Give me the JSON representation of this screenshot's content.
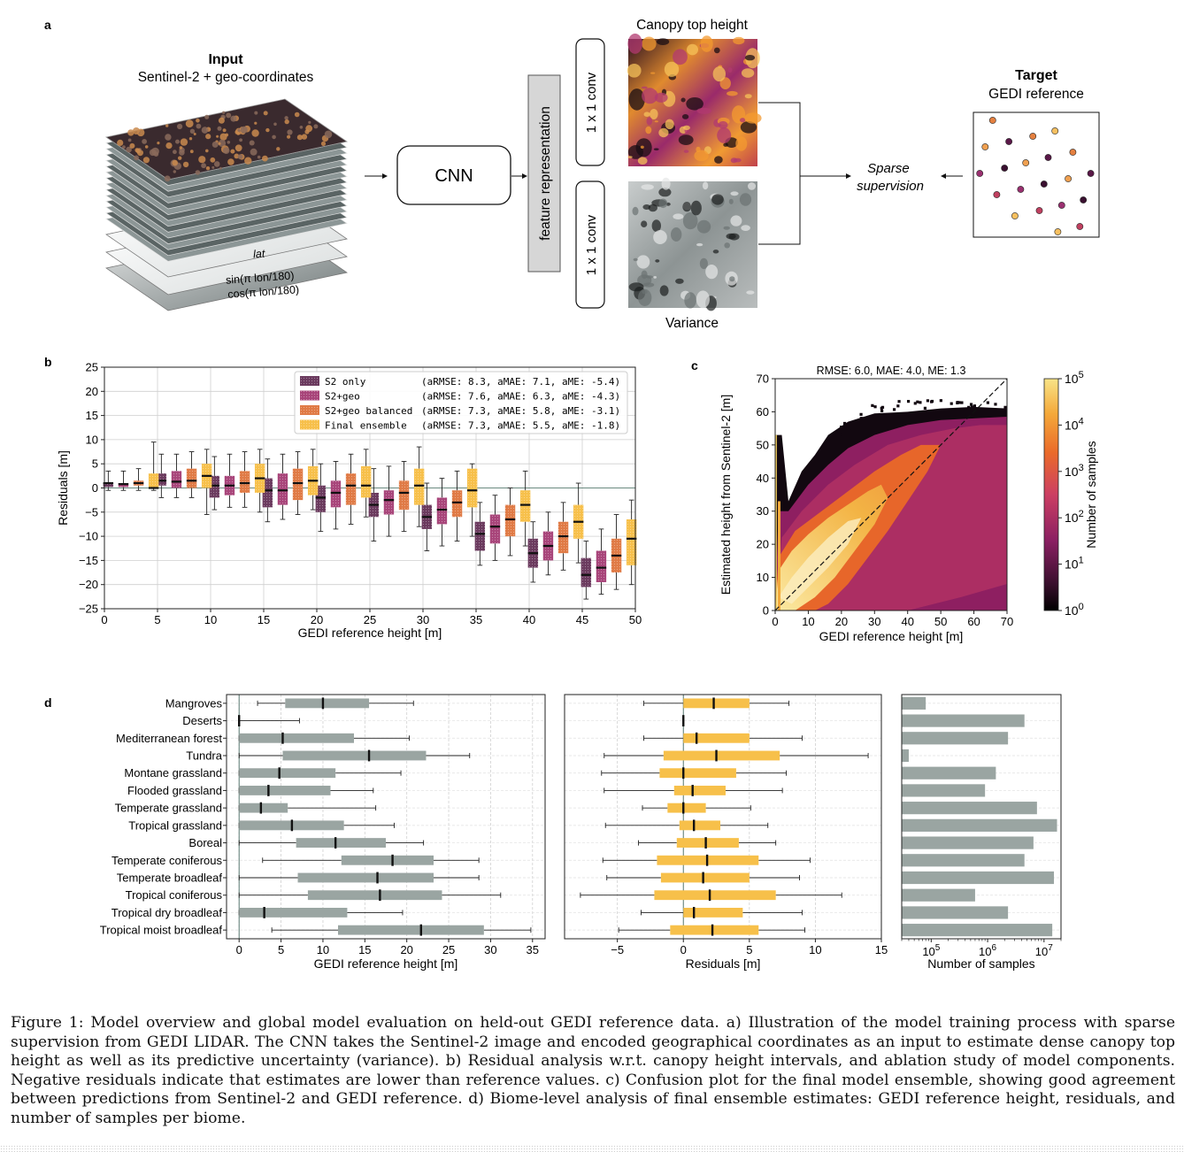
{
  "panel_a": {
    "letter": "a",
    "input_title": "Input",
    "input_subtitle": "Sentinel-2 + geo-coordinates",
    "layer_labels": [
      "lat",
      "sin(π lon/180)",
      "cos(π lon/180)"
    ],
    "cnn_label": "CNN",
    "feature_label": "feature representation",
    "conv_label_top": "1 x 1 conv",
    "conv_label_bottom": "1 x 1 conv",
    "canopy_title": "Canopy top height",
    "variance_title": "Variance",
    "sparse_label": "Sparse supervision",
    "target_title": "Target",
    "target_subtitle": "GEDI reference"
  },
  "chart_data": [
    {
      "panel": "b",
      "type": "box",
      "xlabel": "GEDI reference height [m]",
      "ylabel": "Residuals [m]",
      "xlim": [
        0,
        50
      ],
      "ylim": [
        -25,
        25
      ],
      "xticks": [
        0,
        5,
        10,
        15,
        20,
        25,
        30,
        35,
        40,
        45,
        50
      ],
      "yticks": [
        -25,
        -20,
        -15,
        -10,
        -5,
        0,
        5,
        10,
        15,
        20,
        25
      ],
      "bin_centers": [
        2.5,
        7.5,
        12.5,
        17.5,
        22.5,
        27.5,
        32.5,
        37.5,
        42.5,
        47.5
      ],
      "legend_position": "top-right",
      "series": [
        {
          "name": "S2 only",
          "stats": "(aRMSE: 8.3, aMAE: 7.1, aME: -5.4)",
          "color": "#6b3a5e",
          "boxes": [
            [
              -0.5,
              0.2,
              1,
              1,
              3.5
            ],
            [
              -2,
              0.5,
              1.5,
              3,
              7
            ],
            [
              -4.5,
              -2,
              0.5,
              2.5,
              6.5
            ],
            [
              -7,
              -4,
              -0.5,
              2,
              6
            ],
            [
              -9,
              -5,
              -2,
              0.5,
              5
            ],
            [
              -11,
              -6,
              -3.5,
              -1,
              4
            ],
            [
              -13,
              -8.5,
              -6,
              -3.5,
              1
            ],
            [
              -16,
              -13,
              -9.5,
              -7,
              -3
            ],
            [
              -19.5,
              -16.5,
              -13.5,
              -10.5,
              -7
            ],
            [
              -23,
              -20.5,
              -18,
              -14.5,
              -11
            ]
          ]
        },
        {
          "name": "S2+geo",
          "stats": "(aRMSE: 7.6, aMAE: 6.3, aME: -4.3)",
          "color": "#a8457a",
          "boxes": [
            [
              -0.5,
              0.2,
              0.8,
              1,
              3.5
            ],
            [
              -2,
              0,
              1.3,
              3.5,
              7
            ],
            [
              -4,
              -1.5,
              0.5,
              2.5,
              7
            ],
            [
              -6.5,
              -3.5,
              -0.5,
              3,
              7
            ],
            [
              -8.5,
              -4,
              -1,
              1.5,
              5.5
            ],
            [
              -10,
              -5.5,
              -2.5,
              -0.5,
              4.5
            ],
            [
              -12,
              -7.5,
              -4.5,
              -2,
              2
            ],
            [
              -15,
              -11.5,
              -8,
              -5.5,
              -1.5
            ],
            [
              -18,
              -15,
              -12,
              -9,
              -5
            ],
            [
              -22,
              -19.5,
              -16.5,
              -13,
              -8.5
            ]
          ]
        },
        {
          "name": "S2+geo balanced",
          "stats": "(aRMSE: 7.3, aMAE: 5.8, aME: -3.1)",
          "color": "#e07a45",
          "boxes": [
            [
              -0.5,
              0.5,
              1,
              1.5,
              4
            ],
            [
              -2,
              0,
              1.5,
              4,
              7.5
            ],
            [
              -4,
              -1,
              1,
              3.5,
              7.5
            ],
            [
              -5.5,
              -2.5,
              1,
              4,
              7.5
            ],
            [
              -7.5,
              -3.5,
              0.5,
              3,
              7
            ],
            [
              -9,
              -4.5,
              -1,
              1.5,
              5.5
            ],
            [
              -11,
              -6,
              -3,
              -0.5,
              3.5
            ],
            [
              -14,
              -10,
              -6.5,
              -3.5,
              0
            ],
            [
              -17,
              -13.5,
              -10,
              -7,
              -3
            ],
            [
              -21,
              -17.5,
              -14,
              -10.5,
              -5.5
            ]
          ]
        },
        {
          "name": "Final ensemble",
          "stats": "(aRMSE: 7.3, aMAE: 5.5, aME: -1.8)",
          "color": "#f7c04a",
          "boxes": [
            [
              -0.5,
              0,
              0,
              3,
              9.5
            ],
            [
              -5.5,
              0,
              2.5,
              5,
              8
            ],
            [
              -5,
              -1,
              2,
              5,
              8
            ],
            [
              -4.5,
              -1.5,
              1.5,
              4.5,
              8
            ],
            [
              -6,
              -2,
              0.5,
              4.5,
              8
            ],
            [
              -8,
              -3.5,
              0.5,
              4,
              8.5
            ],
            [
              -10,
              -4,
              -0.5,
              4,
              5
            ],
            [
              -12,
              -7,
              -3.5,
              -0.5,
              3.5
            ],
            [
              -15.5,
              -10.5,
              -7,
              -3.5,
              1
            ],
            [
              -20,
              -16,
              -10.5,
              -6.5,
              -2.5
            ]
          ]
        }
      ]
    },
    {
      "panel": "c",
      "type": "heatmap",
      "title": "RMSE: 6.0, MAE: 4.0, ME: 1.3",
      "xlabel": "GEDI reference height [m]",
      "ylabel": "Estimated height from Sentinel-2 [m]",
      "xlim": [
        0,
        70
      ],
      "ylim": [
        0,
        70
      ],
      "xticks": [
        0,
        10,
        20,
        30,
        40,
        50,
        60,
        70
      ],
      "yticks": [
        0,
        10,
        20,
        30,
        40,
        50,
        60,
        70
      ],
      "colorbar_label": "Number of samples",
      "colorbar_ticks": [
        "10^0",
        "10^1",
        "10^2",
        "10^3",
        "10^4",
        "10^5"
      ],
      "diagonal": "dashed 1:1 line"
    },
    {
      "panel": "d",
      "type": "box",
      "categories": [
        "Mangroves",
        "Deserts",
        "Mediterranean forest",
        "Tundra",
        "Montane grassland",
        "Flooded grassland",
        "Temperate grassland",
        "Tropical grassland",
        "Boreal",
        "Temperate coniferous",
        "Temperate broadleaf",
        "Tropical coniferous",
        "Tropical dry broadleaf",
        "Tropical moist broadleaf"
      ],
      "height": {
        "xlabel": "GEDI reference height [m]",
        "xlim": [
          -1.5,
          36.5
        ],
        "xticks": [
          0,
          5,
          10,
          15,
          20,
          25,
          30,
          35
        ],
        "color": "#9aa5a2",
        "boxes": [
          [
            2.2,
            5.5,
            10,
            15.5,
            20.8
          ],
          [
            0,
            0,
            0,
            0,
            7.2
          ],
          [
            0,
            0,
            5.2,
            13.7,
            20.3
          ],
          [
            0,
            5.2,
            15.5,
            22.3,
            27.5
          ],
          [
            0,
            0,
            4.8,
            11.5,
            19.3
          ],
          [
            0,
            0,
            3.5,
            10.9,
            16
          ],
          [
            0,
            0,
            2.6,
            5.8,
            16.3
          ],
          [
            0,
            0,
            6.3,
            12.5,
            18.5
          ],
          [
            0,
            6.8,
            11.5,
            17.5,
            22
          ],
          [
            2.8,
            12.2,
            18.3,
            23.2,
            28.6
          ],
          [
            0,
            7,
            16.5,
            23.2,
            28.6
          ],
          [
            0,
            8.2,
            16.8,
            24.2,
            31.2
          ],
          [
            0,
            0,
            3,
            12.9,
            19.5
          ],
          [
            3.9,
            11.8,
            21.7,
            29.2,
            34.8
          ]
        ]
      },
      "residuals": {
        "xlabel": "Residuals [m]",
        "xlim": [
          -9,
          15
        ],
        "xticks": [
          -5,
          0,
          5,
          10,
          15
        ],
        "color": "#f7c04a",
        "boxes": [
          [
            -3,
            0,
            2.3,
            5,
            8
          ],
          [
            0,
            0,
            0,
            0,
            0
          ],
          [
            -3,
            0,
            1,
            5,
            9
          ],
          [
            -6,
            -1.5,
            2.5,
            7.3,
            14
          ],
          [
            -6.2,
            -1.8,
            0,
            4,
            7.8
          ],
          [
            -6,
            -0.7,
            0.7,
            3.2,
            7.5
          ],
          [
            -3.1,
            -1.2,
            0,
            1.7,
            5.1
          ],
          [
            -5.9,
            -0.3,
            0.8,
            2.8,
            6.4
          ],
          [
            -3.4,
            -0.5,
            1.7,
            4.2,
            7
          ],
          [
            -6.1,
            -2,
            1.8,
            5.7,
            9.6
          ],
          [
            -5.8,
            -1.7,
            1.5,
            5,
            8.8
          ],
          [
            -7.8,
            -2.2,
            2,
            7,
            12
          ],
          [
            -3.2,
            0,
            0.8,
            4.5,
            9
          ],
          [
            -4.9,
            -1,
            2.2,
            5.7,
            9.2
          ]
        ]
      },
      "samples": {
        "xlabel": "Number of samples",
        "scale": "log",
        "xlim": [
          30000,
          20000000
        ],
        "xticks": [
          "10^5",
          "10^6",
          "10^7"
        ],
        "color": "#9aa5a2",
        "values": [
          80000,
          4500000,
          2300000,
          40000,
          1400000,
          900000,
          7500000,
          17000000,
          6500000,
          4500000,
          15000000,
          600000,
          2300000,
          14000000
        ]
      }
    }
  ],
  "labels": {
    "b": "b",
    "c": "c",
    "d": "d"
  },
  "caption": "Figure 1: Model overview and global model evaluation on held-out GEDI reference data. a) Illustration of the model training process with sparse supervision from GEDI LIDAR. The CNN takes the Sentinel-2 image and encoded geographical coordinates as an input to estimate dense canopy top height as well as its predictive uncertainty (variance). b) Residual analysis w.r.t. canopy height intervals, and ablation study of model components. Negative residuals indicate that estimates are lower than reference values. c) Confusion plot for the final model ensemble, showing good agreement between predictions from Sentinel-2 and GEDI reference. d) Biome-level analysis of final ensemble estimates: GEDI reference height, residuals, and number of samples per biome."
}
